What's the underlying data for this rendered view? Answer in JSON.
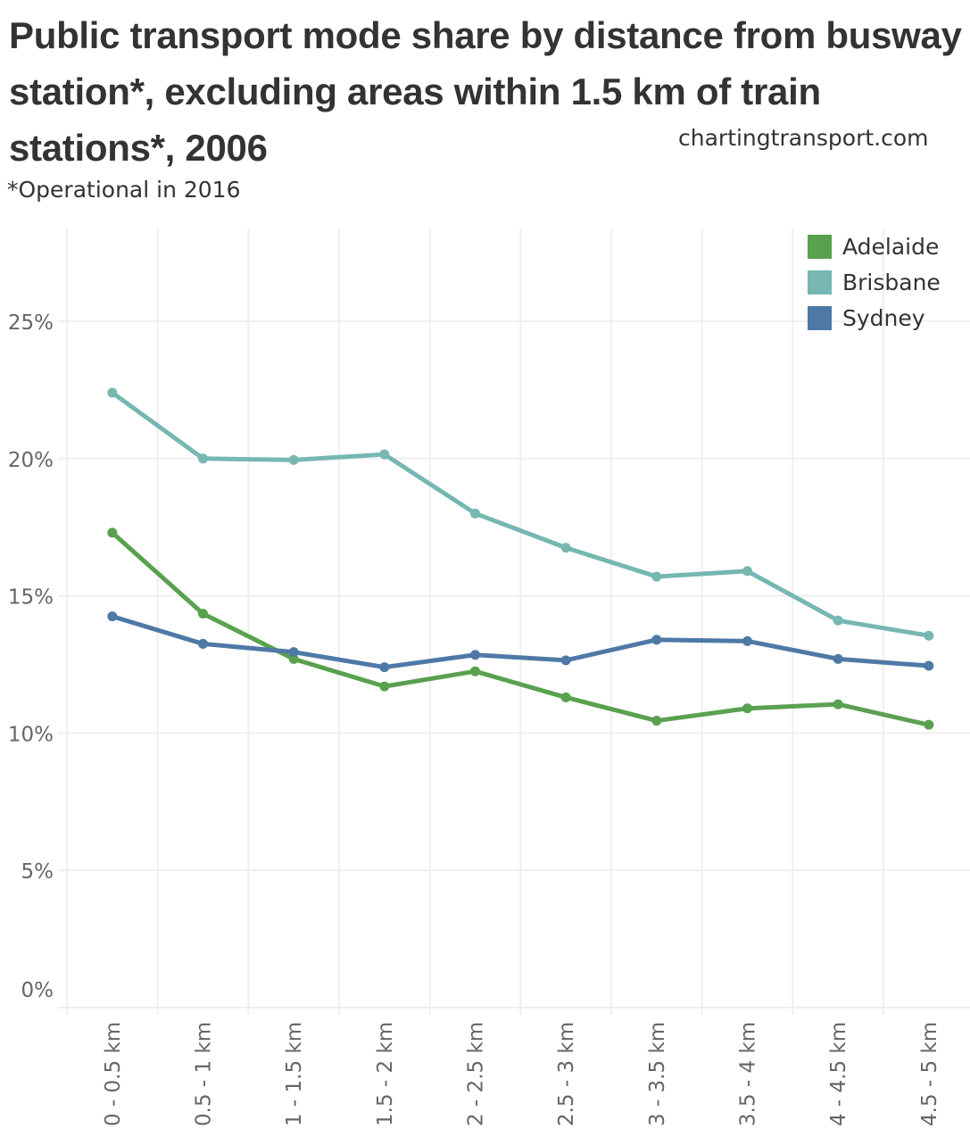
{
  "header": {
    "title": "Public transport mode share by distance from busway station*, excluding areas within 1.5 km of train stations*, 2006",
    "source": "chartingtransport.com",
    "subtitle": "*Operational in 2016"
  },
  "chart_data": {
    "type": "line",
    "title": "Public transport mode share by distance from busway station*, excluding areas within 1.5 km of train stations*, 2006",
    "subtitle": "*Operational in 2016",
    "xlabel": "",
    "ylabel": "",
    "categories": [
      "0 - 0.5 km",
      "0.5 - 1 km",
      "1 - 1.5 km",
      "1.5 - 2 km",
      "2 - 2.5 km",
      "2.5 - 3 km",
      "3 - 3.5 km",
      "3.5 - 4 km",
      "4 - 4.5 km",
      "4.5 - 5 km"
    ],
    "y_ticks": [
      0,
      5,
      10,
      15,
      20,
      25
    ],
    "y_tick_labels": [
      "0%",
      "5%",
      "10%",
      "15%",
      "20%",
      "25%"
    ],
    "ylim": [
      0,
      28.5
    ],
    "grid": true,
    "legend_position": "top-right",
    "series": [
      {
        "name": "Adelaide",
        "color": "#59a14f",
        "values": [
          17.3,
          14.35,
          12.7,
          11.7,
          12.25,
          11.3,
          10.45,
          10.9,
          11.05,
          10.3
        ]
      },
      {
        "name": "Brisbane",
        "color": "#76b7b2",
        "values": [
          22.4,
          20.0,
          19.95,
          20.15,
          18.0,
          16.75,
          15.7,
          15.9,
          14.1,
          13.55
        ]
      },
      {
        "name": "Sydney",
        "color": "#4e79a7",
        "values": [
          14.25,
          13.25,
          12.95,
          12.4,
          12.85,
          12.65,
          13.4,
          13.35,
          12.7,
          12.45
        ]
      }
    ]
  }
}
